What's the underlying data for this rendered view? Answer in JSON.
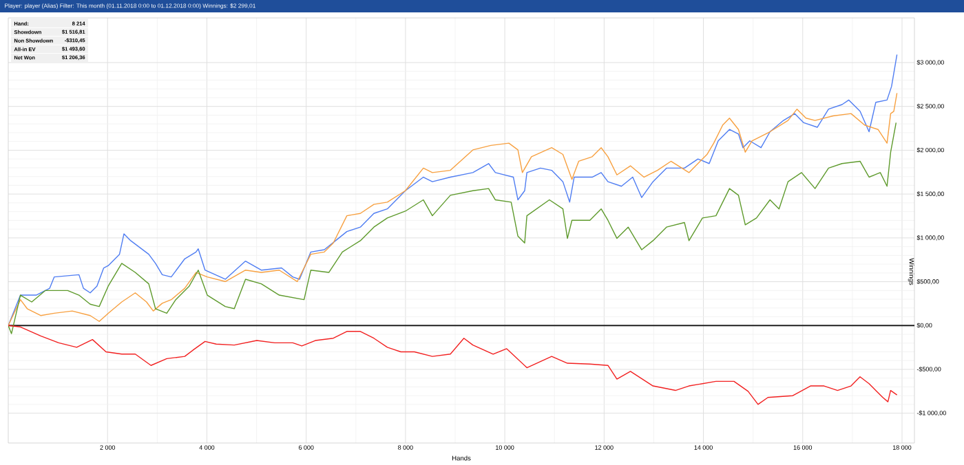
{
  "chart_data": {
    "type": "line",
    "title": "Player: player (Alias)  Filter: This month (01.11.2018 0:00 to 01.12.2018 0:00)  Winnings: $2 299,01",
    "xlabel": "Hands",
    "ylabel": "Winnings",
    "annotations": [
      "Hand:",
      "8 214",
      "Showdown",
      "$1 516,81",
      "Non Showdown",
      "-$310,45",
      "All-in EV",
      "$1 493,60",
      "Net Won",
      "$1 206,36"
    ],
    "xlim": [
      0,
      18250
    ],
    "ylim": [
      -1340,
      3510
    ],
    "xticks": [
      {
        "value": 2000,
        "label": "2 000"
      },
      {
        "value": 4000,
        "label": "4 000"
      },
      {
        "value": 6000,
        "label": "6 000"
      },
      {
        "value": 8000,
        "label": "8 000"
      },
      {
        "value": 10000,
        "label": "10 000"
      },
      {
        "value": 12000,
        "label": "12 000"
      },
      {
        "value": 14000,
        "label": "14 000"
      },
      {
        "value": 16000,
        "label": "16 000"
      },
      {
        "value": 18000,
        "label": "18 000"
      }
    ],
    "yticks": [
      {
        "value": -1000,
        "label": "-$1 000,00"
      },
      {
        "value": -500,
        "label": "-$500,00"
      },
      {
        "value": 0,
        "label": "$0,00"
      },
      {
        "value": 500,
        "label": "$500,00"
      },
      {
        "value": 1000,
        "label": "$1 000,00"
      },
      {
        "value": 1500,
        "label": "$1 500,00"
      },
      {
        "value": 2000,
        "label": "$2 000,00"
      },
      {
        "value": 2500,
        "label": "$2 500,00"
      },
      {
        "value": 3000,
        "label": "$3 000,00"
      }
    ],
    "grid": true,
    "marker": "none",
    "line_style": "solid",
    "ref_lines": [
      {
        "axis": "y",
        "value": 0,
        "color": "#202020"
      }
    ],
    "series": [
      {
        "color": "#4f7df2",
        "x": [
          0,
          245,
          562,
          834,
          925,
          1424,
          1514,
          1650,
          1786,
          1922,
          2013,
          2240,
          2330,
          2466,
          2829,
          2965,
          3101,
          3282,
          3554,
          3781,
          3826,
          3963,
          4371,
          4778,
          5096,
          5504,
          5730,
          5866,
          6093,
          6365,
          6592,
          6819,
          7091,
          7363,
          7634,
          7997,
          8360,
          8541,
          8904,
          9357,
          9674,
          9810,
          10173,
          10264,
          10400,
          10445,
          10717,
          10944,
          11170,
          11306,
          11397,
          11760,
          11941,
          12077,
          12349,
          12576,
          12757,
          12984,
          13256,
          13618,
          13890,
          14117,
          14298,
          14525,
          14706,
          14797,
          14933,
          15160,
          15341,
          15613,
          15840,
          16021,
          16293,
          16520,
          16792,
          16928,
          17155,
          17336,
          17472,
          17698,
          17789,
          17898
        ],
        "values": [
          0,
          347,
          347,
          425,
          554,
          580,
          425,
          373,
          450,
          657,
          683,
          813,
          1046,
          968,
          813,
          709,
          580,
          554,
          761,
          839,
          875,
          632,
          528,
          735,
          632,
          657,
          554,
          528,
          839,
          865,
          968,
          1072,
          1123,
          1279,
          1331,
          1538,
          1693,
          1641,
          1693,
          1745,
          1848,
          1745,
          1693,
          1434,
          1538,
          1745,
          1796,
          1771,
          1641,
          1408,
          1693,
          1693,
          1745,
          1641,
          1589,
          1693,
          1460,
          1641,
          1796,
          1796,
          1900,
          1848,
          2107,
          2237,
          2185,
          2029,
          2107,
          2029,
          2211,
          2340,
          2418,
          2314,
          2262,
          2469,
          2521,
          2573,
          2444,
          2211,
          2547,
          2573,
          2728,
          3091
        ]
      },
      {
        "color": "#f7a040",
        "x": [
          0,
          245,
          381,
          653,
          925,
          1288,
          1650,
          1832,
          2013,
          2285,
          2557,
          2784,
          2920,
          3101,
          3282,
          3554,
          3781,
          4008,
          4371,
          4778,
          5096,
          5458,
          5821,
          6093,
          6365,
          6546,
          6819,
          7091,
          7363,
          7634,
          7997,
          8360,
          8541,
          8904,
          9357,
          9720,
          10082,
          10264,
          10354,
          10536,
          10944,
          11170,
          11352,
          11488,
          11760,
          11941,
          12077,
          12258,
          12530,
          12802,
          13074,
          13346,
          13709,
          14072,
          14208,
          14389,
          14525,
          14706,
          14843,
          14978,
          15341,
          15704,
          15885,
          16066,
          16248,
          16611,
          16973,
          17245,
          17517,
          17698,
          17771,
          17834,
          17898
        ],
        "values": [
          0,
          295,
          192,
          114,
          140,
          166,
          114,
          47,
          140,
          269,
          373,
          269,
          166,
          254,
          295,
          425,
          606,
          554,
          502,
          632,
          606,
          632,
          502,
          813,
          839,
          942,
          1253,
          1279,
          1382,
          1408,
          1538,
          1796,
          1745,
          1771,
          2004,
          2055,
          2081,
          2004,
          1745,
          1926,
          2029,
          1952,
          1667,
          1874,
          1926,
          2029,
          1926,
          1719,
          1822,
          1693,
          1771,
          1874,
          1745,
          1952,
          2081,
          2288,
          2366,
          2237,
          1978,
          2107,
          2211,
          2340,
          2469,
          2366,
          2340,
          2392,
          2418,
          2288,
          2237,
          2081,
          2418,
          2444,
          2651
        ]
      },
      {
        "color": "#5e9a2c",
        "x": [
          0,
          64,
          245,
          472,
          744,
          1197,
          1424,
          1650,
          1832,
          2013,
          2285,
          2557,
          2829,
          2965,
          3192,
          3373,
          3645,
          3826,
          4008,
          4371,
          4552,
          4778,
          5096,
          5458,
          5957,
          6093,
          6456,
          6728,
          7091,
          7363,
          7634,
          7997,
          8360,
          8541,
          8904,
          9357,
          9674,
          9810,
          10128,
          10264,
          10400,
          10445,
          10898,
          11170,
          11261,
          11352,
          11714,
          11941,
          12077,
          12258,
          12485,
          12757,
          12984,
          13256,
          13618,
          13709,
          13981,
          14253,
          14525,
          14706,
          14843,
          15069,
          15341,
          15523,
          15704,
          15976,
          16248,
          16520,
          16792,
          17155,
          17336,
          17562,
          17698,
          17771,
          17880
        ],
        "values": [
          0,
          -93,
          347,
          269,
          399,
          399,
          347,
          243,
          217,
          450,
          709,
          606,
          476,
          192,
          140,
          295,
          450,
          632,
          347,
          217,
          192,
          528,
          476,
          347,
          295,
          632,
          606,
          839,
          968,
          1123,
          1227,
          1305,
          1434,
          1253,
          1486,
          1538,
          1563,
          1434,
          1408,
          1020,
          942,
          1253,
          1434,
          1331,
          994,
          1201,
          1201,
          1331,
          1201,
          994,
          1123,
          865,
          968,
          1123,
          1175,
          968,
          1227,
          1253,
          1563,
          1486,
          1149,
          1227,
          1434,
          1331,
          1641,
          1745,
          1563,
          1796,
          1848,
          1874,
          1693,
          1745,
          1589,
          1978,
          2314
        ]
      },
      {
        "color": "#f22020",
        "x": [
          0,
          245,
          653,
          1016,
          1378,
          1696,
          1968,
          2285,
          2557,
          2874,
          3192,
          3554,
          3736,
          3963,
          4189,
          4552,
          5005,
          5368,
          5730,
          5912,
          6184,
          6546,
          6819,
          7091,
          7363,
          7634,
          7906,
          8179,
          8541,
          8904,
          9176,
          9357,
          9765,
          10037,
          10445,
          10944,
          11261,
          11714,
          12077,
          12258,
          12530,
          12984,
          13437,
          13709,
          14253,
          14615,
          14900,
          15100,
          15300,
          15800,
          16157,
          16429,
          16701,
          16973,
          17154,
          17336,
          17608,
          17716,
          17770,
          17898
        ],
        "values": [
          0,
          -16,
          -119,
          -197,
          -248,
          -160,
          -300,
          -326,
          -326,
          -455,
          -378,
          -352,
          -274,
          -181,
          -212,
          -223,
          -171,
          -197,
          -197,
          -233,
          -171,
          -145,
          -67,
          -67,
          -145,
          -248,
          -300,
          -300,
          -352,
          -326,
          -145,
          -223,
          -326,
          -264,
          -481,
          -352,
          -430,
          -440,
          -455,
          -611,
          -523,
          -689,
          -740,
          -689,
          -637,
          -637,
          -750,
          -900,
          -820,
          -800,
          -689,
          -689,
          -741,
          -689,
          -585,
          -663,
          -818,
          -870,
          -741,
          -792
        ]
      }
    ]
  }
}
